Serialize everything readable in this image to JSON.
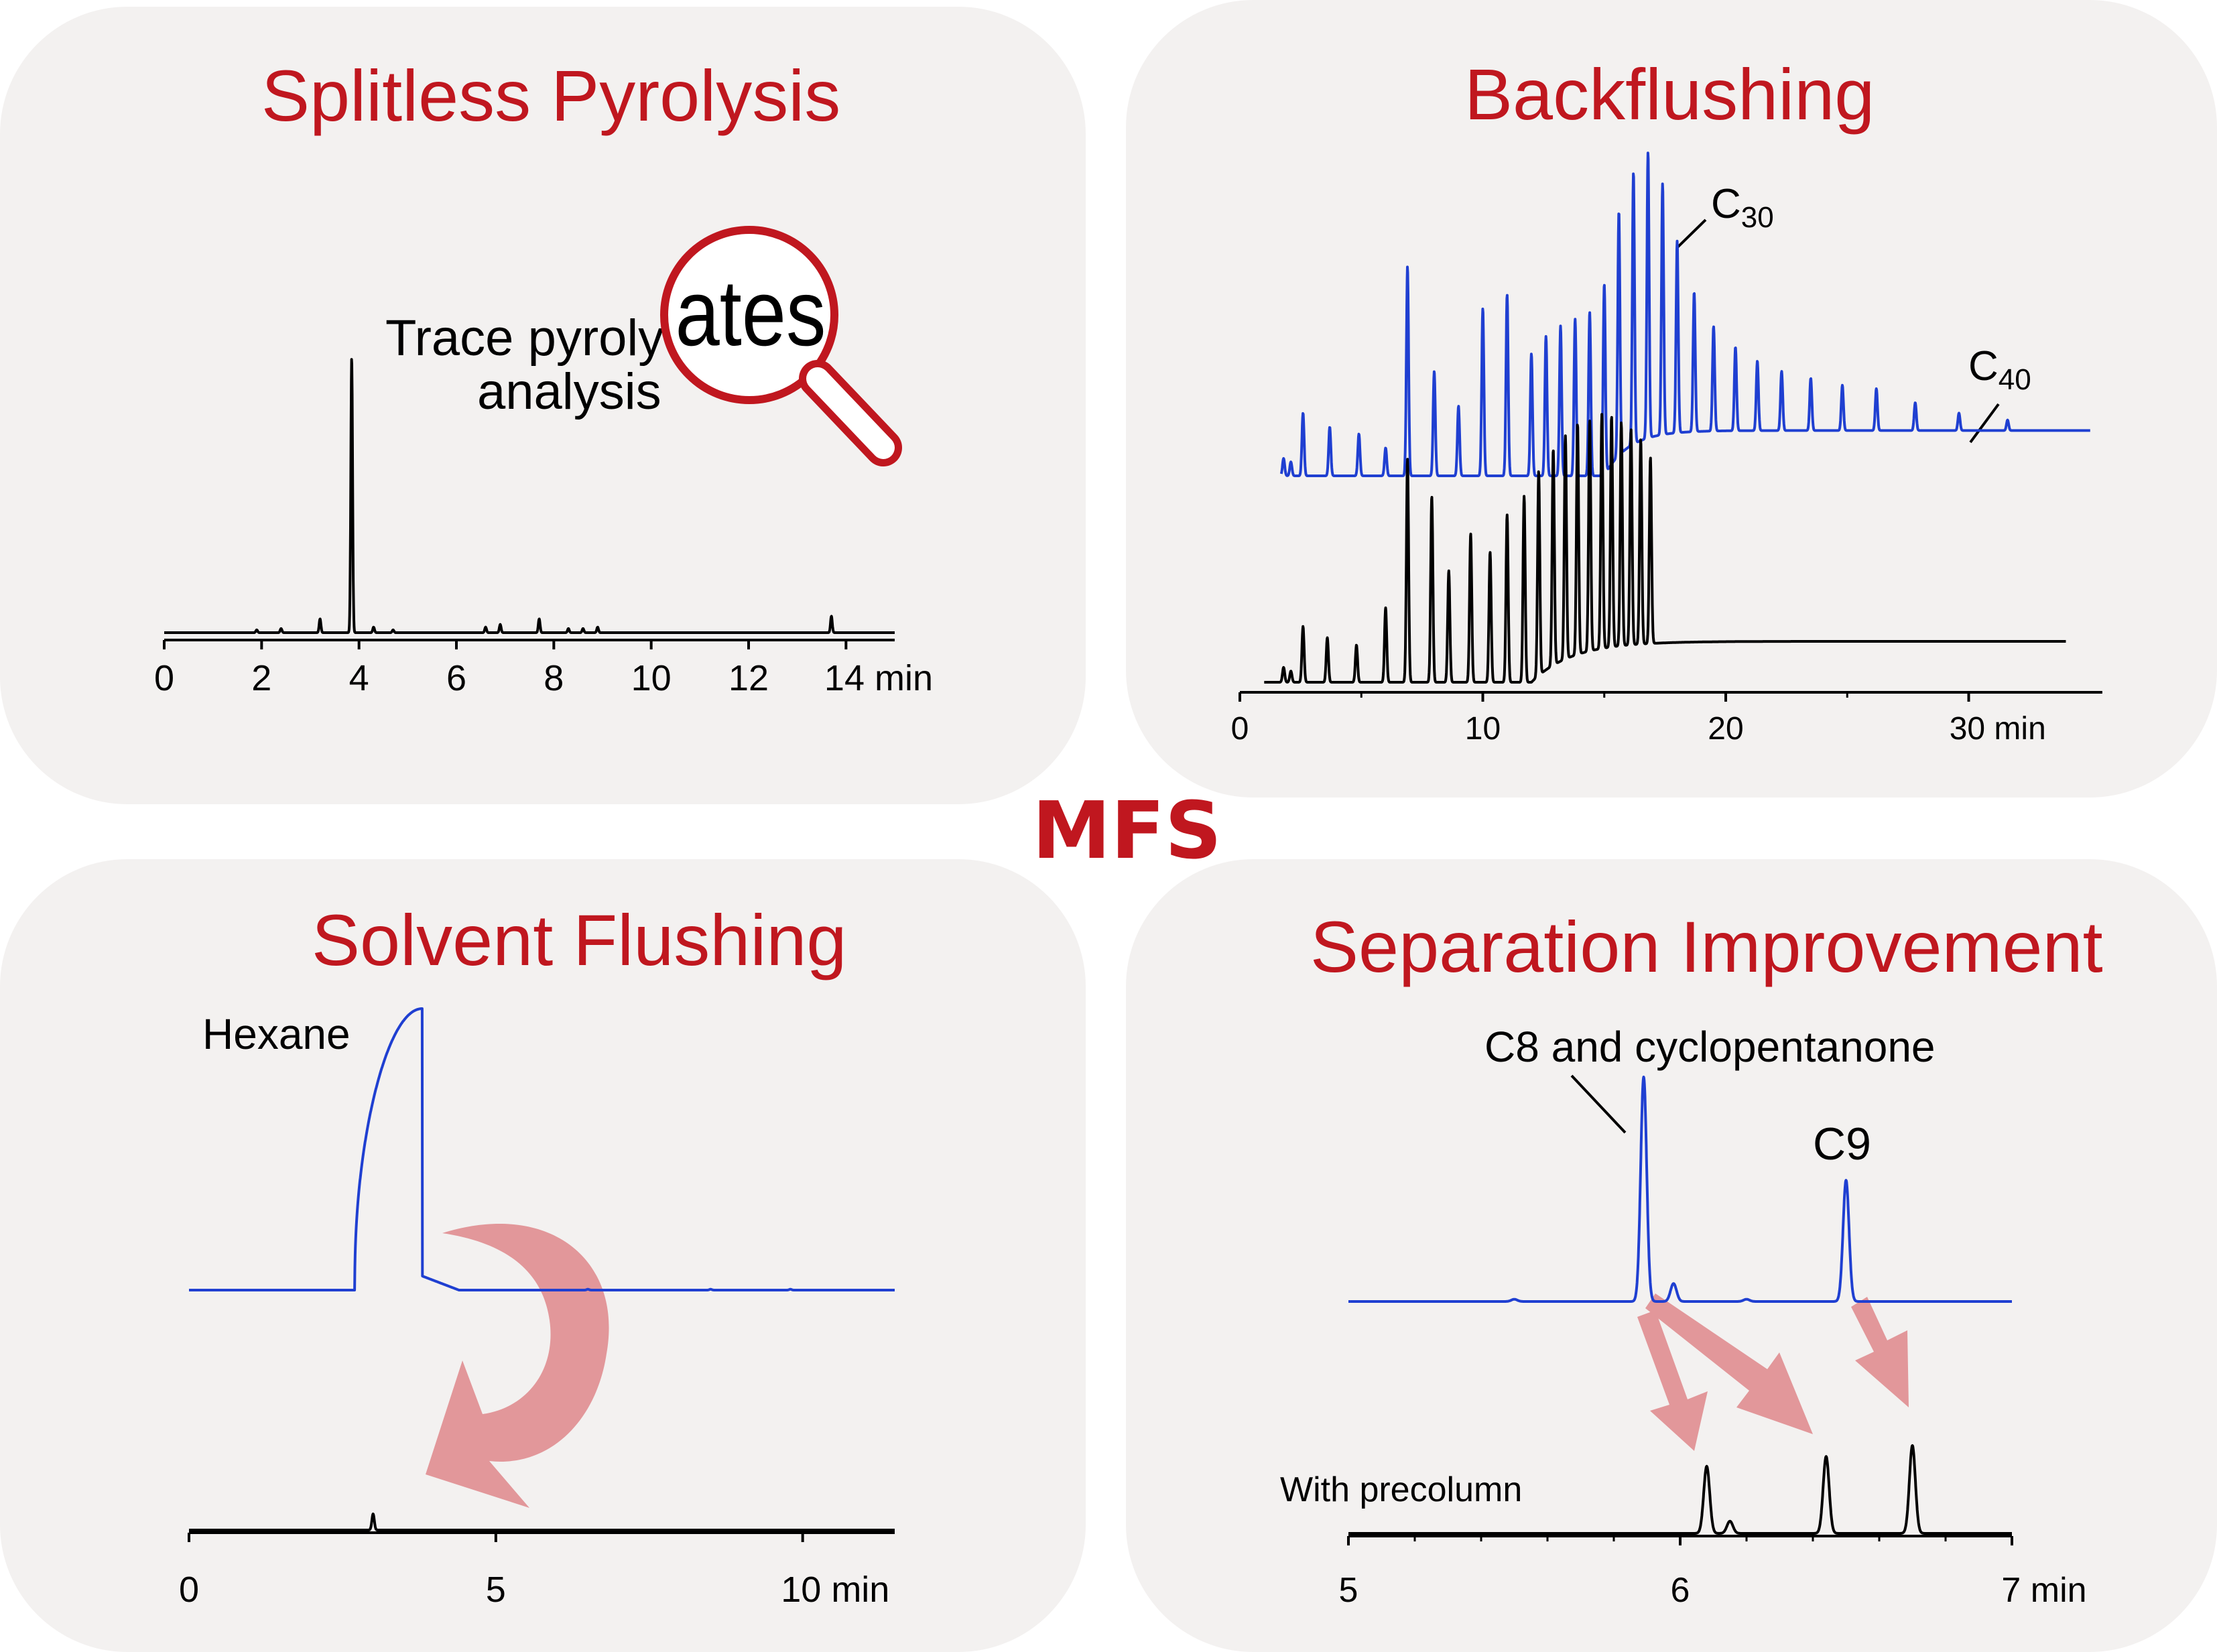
{
  "center_label": "MFS",
  "panels": {
    "tl": {
      "title": "Splitless Pyrolysis",
      "annotation_lines": [
        "Trace pyroly",
        "analysis"
      ],
      "magnifier_text": "ates"
    },
    "tr": {
      "title": "Backflushing",
      "labels": [
        {
          "base": "C",
          "sub": "30"
        },
        {
          "base": "C",
          "sub": "40"
        }
      ]
    },
    "bl": {
      "title": "Solvent Flushing",
      "label": "Hexane"
    },
    "br": {
      "title": "Separation Improvement",
      "label_c8": "C8 and cyclopentanone",
      "label_c9": "C9",
      "label_precolumn": "With precolumn"
    }
  },
  "colors": {
    "accent_red": "#c0171f",
    "blue_trace": "#1f3fd1",
    "black_trace": "#000000",
    "arrow": "#e2979a",
    "panel_bg": "#f3f1f0"
  },
  "chart_data": [
    {
      "type": "line",
      "title": "Splitless Pyrolysis",
      "xlabel": "",
      "ylabel": "",
      "xlim": [
        0,
        15
      ],
      "x_ticks": [
        0,
        2,
        4,
        6,
        8,
        10,
        12,
        14
      ],
      "x_unit": "min",
      "series": [
        {
          "color": "#000000",
          "baseline": 0,
          "peaks": [
            [
              1.9,
              0.01
            ],
            [
              2.4,
              0.015
            ],
            [
              3.2,
              0.05
            ],
            [
              3.85,
              1.0
            ],
            [
              4.3,
              0.02
            ],
            [
              4.7,
              0.01
            ],
            [
              6.6,
              0.02
            ],
            [
              6.9,
              0.03
            ],
            [
              7.7,
              0.05
            ],
            [
              8.3,
              0.015
            ],
            [
              8.6,
              0.015
            ],
            [
              8.9,
              0.02
            ],
            [
              13.7,
              0.06
            ]
          ]
        }
      ]
    },
    {
      "type": "line",
      "title": "Backflushing",
      "xlabel": "",
      "ylabel": "",
      "xlim": [
        0,
        36
      ],
      "x_ticks": [
        0,
        10,
        20,
        30
      ],
      "x_unit": "min",
      "annotations": [
        "C30",
        "C40"
      ],
      "series": [
        {
          "color": "#1f3fd1",
          "run_end": 35,
          "rise": [
            15,
            18,
            0.13
          ],
          "peaks": [
            [
              1.8,
              0.05
            ],
            [
              2.1,
              0.04
            ],
            [
              2.6,
              0.18
            ],
            [
              3.7,
              0.14
            ],
            [
              4.9,
              0.12
            ],
            [
              6.0,
              0.08
            ],
            [
              6.9,
              0.6
            ],
            [
              8.0,
              0.3
            ],
            [
              9.0,
              0.2
            ],
            [
              10.0,
              0.48
            ],
            [
              11.0,
              0.52
            ],
            [
              12.0,
              0.35
            ],
            [
              12.6,
              0.4
            ],
            [
              13.2,
              0.43
            ],
            [
              13.8,
              0.45
            ],
            [
              14.4,
              0.47
            ],
            [
              15.0,
              0.55
            ],
            [
              15.6,
              0.7
            ],
            [
              16.2,
              0.78
            ],
            [
              16.8,
              0.82
            ],
            [
              17.4,
              0.72
            ],
            [
              18.0,
              0.55
            ],
            [
              18.7,
              0.4
            ],
            [
              19.5,
              0.3
            ],
            [
              20.4,
              0.24
            ],
            [
              21.3,
              0.2
            ],
            [
              22.3,
              0.17
            ],
            [
              23.5,
              0.15
            ],
            [
              24.8,
              0.13
            ],
            [
              26.2,
              0.12
            ],
            [
              27.8,
              0.08
            ],
            [
              29.6,
              0.05
            ],
            [
              31.6,
              0.03
            ]
          ]
        },
        {
          "color": "#000000",
          "run_end": 34,
          "rise": [
            12,
            17,
            0.11
          ],
          "peaks": [
            [
              1.8,
              0.04
            ],
            [
              2.1,
              0.03
            ],
            [
              2.6,
              0.15
            ],
            [
              3.6,
              0.12
            ],
            [
              4.8,
              0.1
            ],
            [
              6.0,
              0.2
            ],
            [
              6.9,
              0.6
            ],
            [
              7.9,
              0.5
            ],
            [
              8.6,
              0.3
            ],
            [
              9.5,
              0.4
            ],
            [
              10.3,
              0.35
            ],
            [
              11.0,
              0.45
            ],
            [
              11.7,
              0.5
            ],
            [
              12.3,
              0.55
            ],
            [
              12.9,
              0.58
            ],
            [
              13.4,
              0.6
            ],
            [
              13.9,
              0.62
            ],
            [
              14.4,
              0.62
            ],
            [
              14.9,
              0.63
            ],
            [
              15.3,
              0.62
            ],
            [
              15.7,
              0.6
            ],
            [
              16.1,
              0.58
            ],
            [
              16.5,
              0.55
            ],
            [
              16.9,
              0.5
            ]
          ]
        }
      ]
    },
    {
      "type": "line",
      "title": "Solvent Flushing",
      "xlabel": "",
      "ylabel": "",
      "xlim": [
        0,
        11.5
      ],
      "x_ticks": [
        0,
        5,
        10
      ],
      "x_unit": "min",
      "annotations": [
        "Hexane"
      ],
      "series": [
        {
          "color": "#1f3fd1",
          "label": "Hexane",
          "solvent_peak": [
            2.7,
            3.8,
            4.4,
            1.0
          ],
          "peaks": [
            [
              6.5,
              0.003
            ],
            [
              8.5,
              0.003
            ],
            [
              9.8,
              0.003
            ]
          ]
        },
        {
          "color": "#000000",
          "peaks": [
            [
              3.0,
              0.3
            ]
          ]
        }
      ]
    },
    {
      "type": "line",
      "title": "Separation Improvement",
      "xlabel": "",
      "ylabel": "",
      "xlim": [
        5,
        7
      ],
      "x_ticks": [
        5,
        6,
        7
      ],
      "x_unit": "min",
      "annotations": [
        "C8 and cyclopentanone",
        "C9",
        "With precolumn"
      ],
      "series": [
        {
          "color": "#1f3fd1",
          "peaks": [
            [
              5.89,
              1.0
            ],
            [
              5.98,
              0.08
            ],
            [
              6.5,
              0.54
            ],
            [
              5.5,
              0.01
            ],
            [
              6.2,
              0.01
            ]
          ]
        },
        {
          "color": "#000000",
          "label": "With precolumn",
          "peaks": [
            [
              6.08,
              0.55
            ],
            [
              6.15,
              0.1
            ],
            [
              6.44,
              0.63
            ],
            [
              6.7,
              0.72
            ]
          ]
        }
      ]
    }
  ]
}
